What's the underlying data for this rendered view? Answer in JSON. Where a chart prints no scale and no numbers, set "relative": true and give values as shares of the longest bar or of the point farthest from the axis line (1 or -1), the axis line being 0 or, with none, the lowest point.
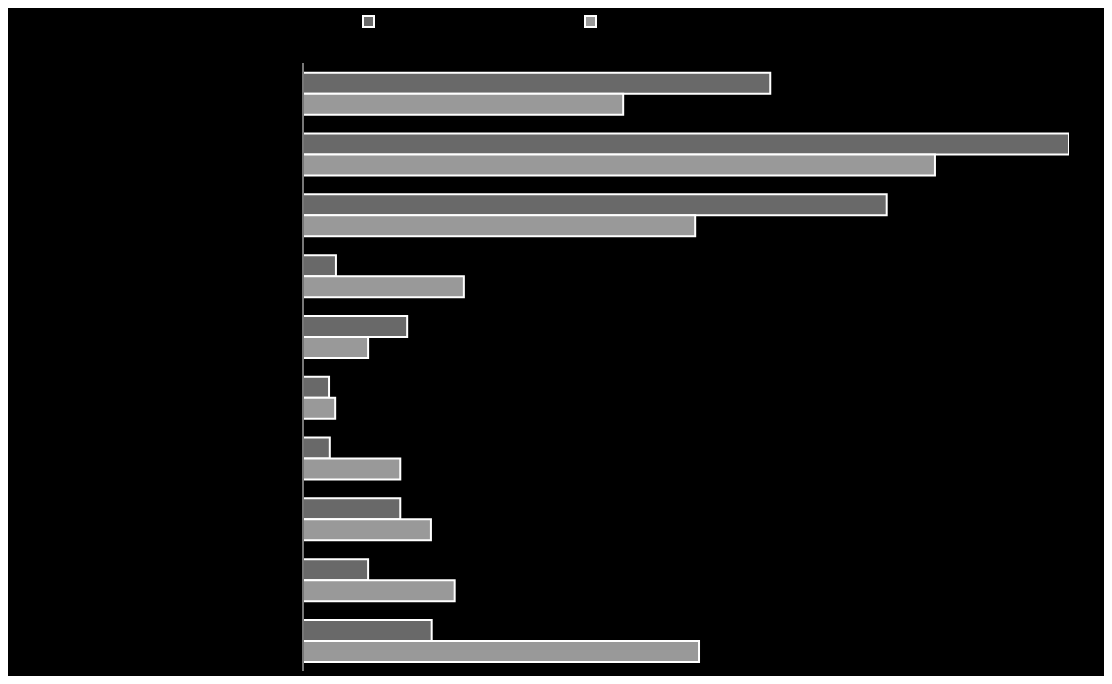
{
  "chart_data": {
    "type": "bar",
    "orientation": "horizontal",
    "relative": true,
    "categories": [
      null,
      null,
      null,
      null,
      null,
      null,
      null,
      null,
      null,
      null
    ],
    "series": [
      {
        "color": "#696969",
        "values": [
          0.61,
          1,
          0.762,
          0.043,
          0.136,
          0.034,
          0.035,
          0.127,
          0.085,
          0.168
        ]
      },
      {
        "color": "#999999",
        "values": [
          0.418,
          0.825,
          0.512,
          0.21,
          0.085,
          0.042,
          0.127,
          0.167,
          0.198,
          0.517
        ]
      }
    ]
  }
}
